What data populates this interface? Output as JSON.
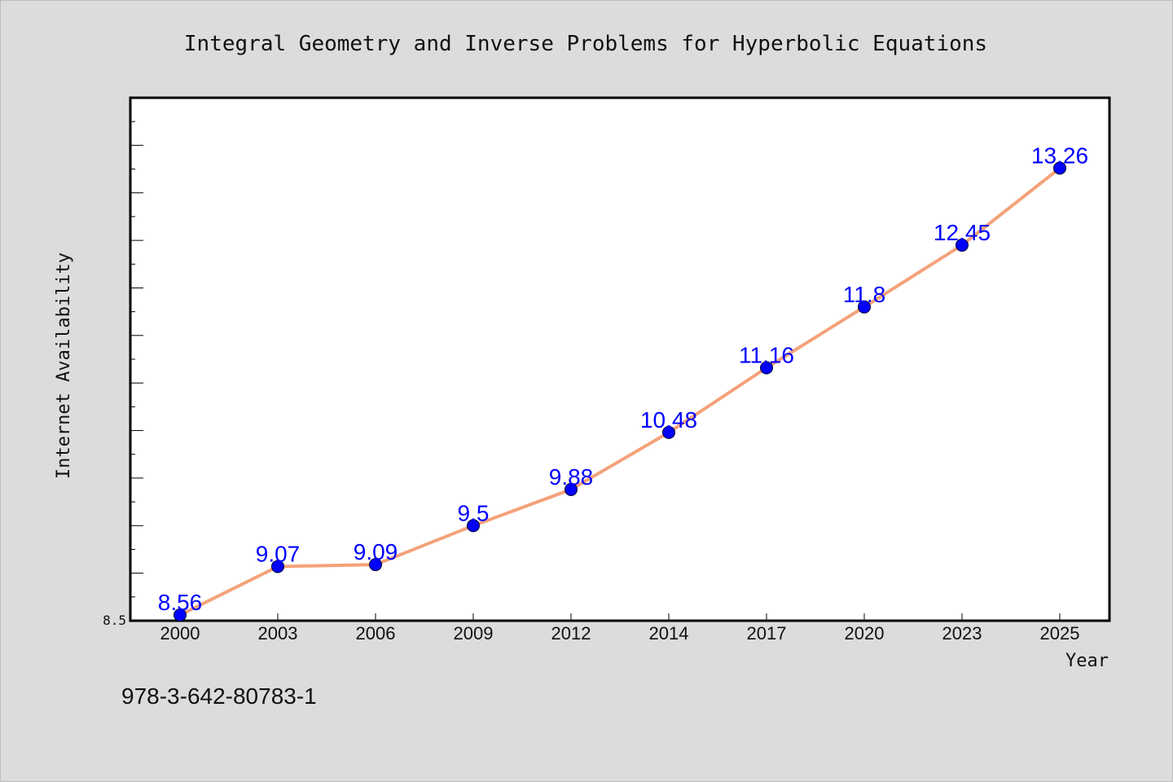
{
  "chart_data": {
    "type": "line",
    "title": "Integral Geometry and Inverse Problems for Hyperbolic Equations",
    "xlabel": "Year",
    "ylabel": "Internet Availability",
    "categories": [
      "2000",
      "2003",
      "2006",
      "2009",
      "2012",
      "2014",
      "2017",
      "2020",
      "2023",
      "2025"
    ],
    "series": [
      {
        "values": [
          8.56,
          9.07,
          9.09,
          9.5,
          9.88,
          10.48,
          11.16,
          11.8,
          12.45,
          13.26
        ]
      }
    ],
    "data_labels": [
      "8.56",
      "9.07",
      "9.09",
      "9.5",
      "9.88",
      "10.48",
      "11.16",
      "11.8",
      "12.45",
      "13.26"
    ],
    "y_tick_label": "8.5",
    "ylim": [
      8.5,
      14.0
    ],
    "grid": false,
    "legend": "none",
    "colors": {
      "line": "#f4a27a",
      "marker": "#0000ff",
      "data_label": "#0000ff",
      "plot_background": "#ffffff",
      "page_background": "#dcdcdc"
    }
  },
  "footer_code": "978-3-642-80783-1"
}
